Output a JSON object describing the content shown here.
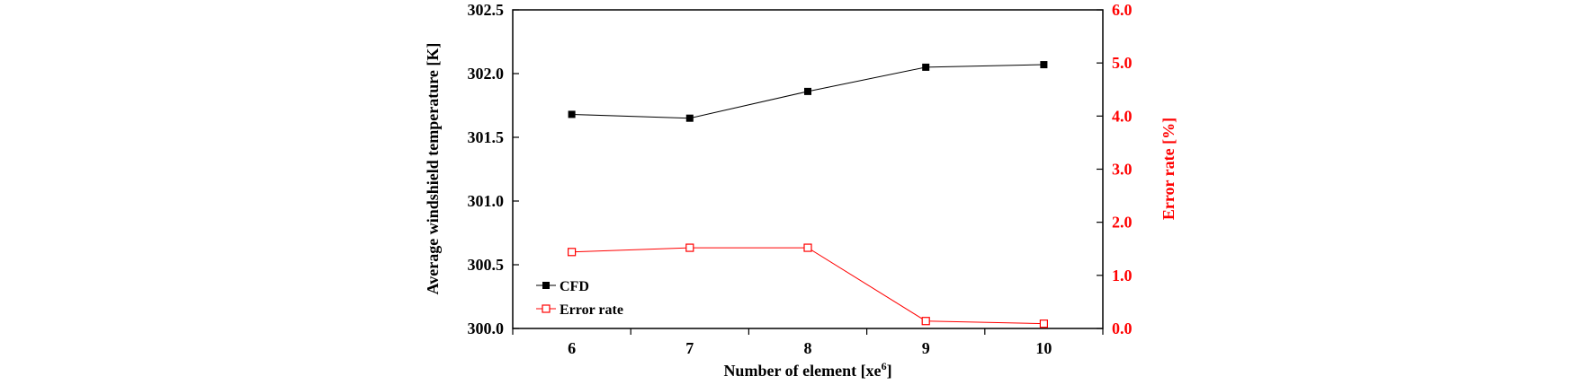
{
  "chart_data": {
    "type": "line",
    "xlabel": "Number of element [xe⁶]",
    "x": [
      6,
      7,
      8,
      9,
      10
    ],
    "y_left": {
      "label": "Average windshield temperature [K]",
      "lim": [
        300.0,
        302.5
      ],
      "ticks": [
        "300.0",
        "300.5",
        "301.0",
        "301.5",
        "302.0",
        "302.5"
      ]
    },
    "y_right": {
      "label": "Error rate [%]",
      "lim": [
        0.0,
        6.0
      ],
      "ticks": [
        "0.0",
        "1.0",
        "2.0",
        "3.0",
        "4.0",
        "5.0",
        "6.0"
      ]
    },
    "series": [
      {
        "name": "CFD",
        "axis": "left",
        "values": [
          301.68,
          301.65,
          301.86,
          302.05,
          302.07
        ],
        "color": "#000000",
        "marker": "filled-square"
      },
      {
        "name": "Error rate",
        "axis": "right",
        "values": [
          1.44,
          1.52,
          1.52,
          0.14,
          0.09
        ],
        "color": "#ff0000",
        "marker": "open-square"
      }
    ],
    "legend": "bottom-left",
    "grid": false,
    "colors": {
      "right_axis": "#ff0000",
      "left_axis": "#000000"
    }
  }
}
